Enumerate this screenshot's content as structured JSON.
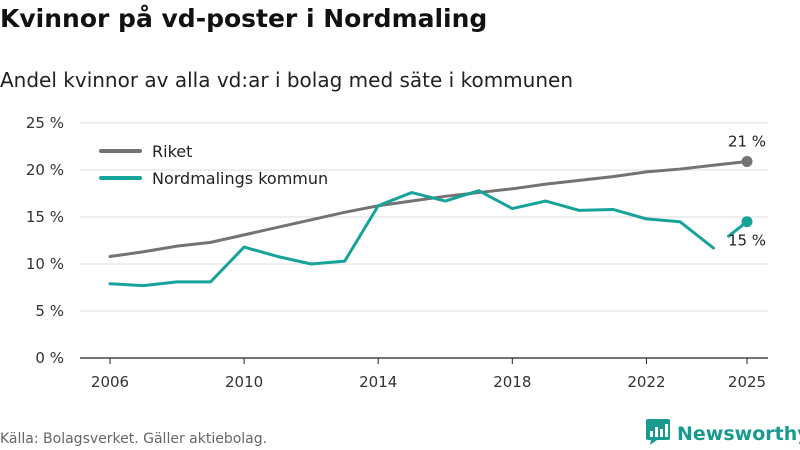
{
  "header": {
    "title": "Kvinnor på vd-poster i Nordmaling",
    "subtitle": "Andel kvinnor av alla vd:ar i bolag med säte i kommunen"
  },
  "footer": {
    "source": "Källa: Bolagsverket. Gäller aktiebolag.",
    "brand": "Newsworthy"
  },
  "colors": {
    "riket": "#737373",
    "kommun": "#15a39a",
    "grid": "#dddddd",
    "brand": "#1a9a8e"
  },
  "chart_data": {
    "type": "line",
    "title": "Kvinnor på vd-poster i Nordmaling",
    "subtitle": "Andel kvinnor av alla vd:ar i bolag med säte i kommunen",
    "xlabel": "",
    "ylabel": "",
    "xlim": [
      2006,
      2025
    ],
    "ylim": [
      0,
      25
    ],
    "x_ticks": [
      2006,
      2010,
      2014,
      2018,
      2022,
      2025
    ],
    "x_tick_labels": [
      "2006",
      "2010",
      "2014",
      "2018",
      "2022",
      "2025"
    ],
    "y_ticks": [
      0,
      5,
      10,
      15,
      20,
      25
    ],
    "y_tick_labels": [
      "0 %",
      "5 %",
      "10 %",
      "15 %",
      "20 %",
      "25 %"
    ],
    "grid": true,
    "legend_position": "top-left",
    "x": [
      2006,
      2007,
      2008,
      2009,
      2010,
      2011,
      2012,
      2013,
      2014,
      2015,
      2016,
      2017,
      2018,
      2019,
      2020,
      2021,
      2022,
      2023,
      2024,
      2025
    ],
    "series": [
      {
        "name": "Riket",
        "color": "#737373",
        "values": [
          10.8,
          11.3,
          11.9,
          12.3,
          13.1,
          13.9,
          14.7,
          15.5,
          16.2,
          16.7,
          17.2,
          17.6,
          18.0,
          18.5,
          18.9,
          19.3,
          19.8,
          20.1,
          20.5,
          20.9
        ],
        "end_label": "21 %"
      },
      {
        "name": "Nordmalings kommun",
        "color": "#15a39a",
        "values": [
          7.9,
          7.7,
          8.1,
          8.1,
          11.8,
          10.8,
          10.0,
          10.3,
          16.2,
          17.6,
          16.7,
          17.8,
          15.9,
          16.7,
          15.7,
          15.8,
          14.8,
          14.5,
          11.7,
          14.5
        ],
        "end_label": "15 %",
        "gap_before_last": true
      }
    ]
  }
}
